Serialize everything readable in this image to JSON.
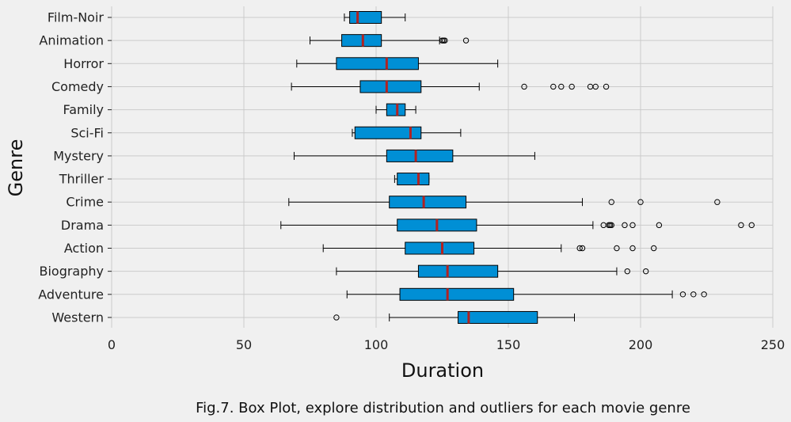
{
  "caption": "Fig.7. Box Plot, explore distribution and outliers for each movie genre",
  "colors": {
    "background": "#f0f0f0",
    "box_fill": "#008fd5",
    "median": "#b22222",
    "grid": "#cbcbcb",
    "outline": "#000000"
  },
  "chart_data": {
    "type": "boxplot",
    "orientation": "horizontal",
    "title": "",
    "xlabel": "Duration",
    "ylabel": "Genre",
    "xlim": [
      0,
      250
    ],
    "xticks": [
      0,
      50,
      100,
      150,
      200,
      250
    ],
    "grid": true,
    "categories": [
      "Film-Noir",
      "Animation",
      "Horror",
      "Comedy",
      "Family",
      "Sci-Fi",
      "Mystery",
      "Thriller",
      "Crime",
      "Drama",
      "Action",
      "Biography",
      "Adventure",
      "Western"
    ],
    "boxes": [
      {
        "genre": "Film-Noir",
        "whislo": 88,
        "q1": 90,
        "med": 93,
        "q3": 102,
        "whishi": 111,
        "fliers": []
      },
      {
        "genre": "Animation",
        "whislo": 75,
        "q1": 87,
        "med": 95,
        "q3": 102,
        "whishi": 124,
        "fliers": [
          125,
          125.5,
          126,
          134
        ]
      },
      {
        "genre": "Horror",
        "whislo": 70,
        "q1": 85,
        "med": 104,
        "q3": 116,
        "whishi": 146,
        "fliers": []
      },
      {
        "genre": "Comedy",
        "whislo": 68,
        "q1": 94,
        "med": 104,
        "q3": 117,
        "whishi": 139,
        "fliers": [
          156,
          167,
          170,
          174,
          181,
          183,
          187
        ]
      },
      {
        "genre": "Family",
        "whislo": 100,
        "q1": 104,
        "med": 108,
        "q3": 111,
        "whishi": 115,
        "fliers": []
      },
      {
        "genre": "Sci-Fi",
        "whislo": 91,
        "q1": 92,
        "med": 113,
        "q3": 117,
        "whishi": 132,
        "fliers": []
      },
      {
        "genre": "Mystery",
        "whislo": 69,
        "q1": 104,
        "med": 115,
        "q3": 129,
        "whishi": 160,
        "fliers": []
      },
      {
        "genre": "Thriller",
        "whislo": 107,
        "q1": 108,
        "med": 116,
        "q3": 120,
        "whishi": 120,
        "fliers": []
      },
      {
        "genre": "Crime",
        "whislo": 67,
        "q1": 105,
        "med": 118,
        "q3": 134,
        "whishi": 178,
        "fliers": [
          189,
          200,
          229
        ]
      },
      {
        "genre": "Drama",
        "whislo": 64,
        "q1": 108,
        "med": 123,
        "q3": 138,
        "whishi": 182,
        "fliers": [
          186,
          188,
          188.5,
          189,
          194,
          197,
          207,
          238,
          242
        ]
      },
      {
        "genre": "Action",
        "whislo": 80,
        "q1": 111,
        "med": 125,
        "q3": 137,
        "whishi": 170,
        "fliers": [
          177,
          178,
          191,
          197,
          205
        ]
      },
      {
        "genre": "Biography",
        "whislo": 85,
        "q1": 116,
        "med": 127,
        "q3": 146,
        "whishi": 191,
        "fliers": [
          195,
          202
        ]
      },
      {
        "genre": "Adventure",
        "whislo": 89,
        "q1": 109,
        "med": 127,
        "q3": 152,
        "whishi": 212,
        "fliers": [
          216,
          220,
          224
        ]
      },
      {
        "genre": "Western",
        "whislo": 105,
        "q1": 131,
        "med": 135,
        "q3": 161,
        "whishi": 175,
        "fliers": [
          85
        ]
      }
    ]
  }
}
